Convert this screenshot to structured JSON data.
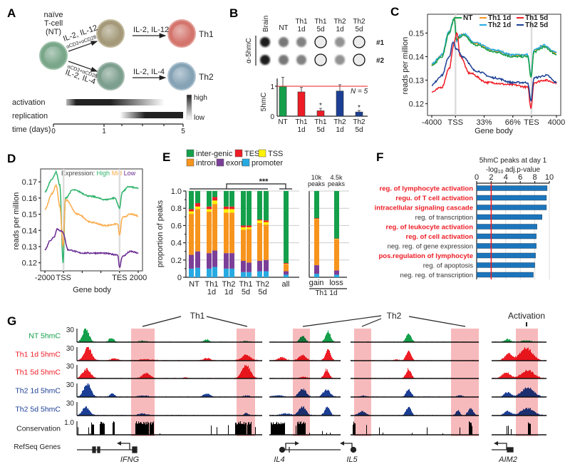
{
  "panels": {
    "a": "A",
    "b": "B",
    "c": "C",
    "d": "D",
    "e": "E",
    "f": "F",
    "g": "G"
  },
  "panel_a": {
    "naive_l1": "naïve",
    "naive_l2": "T-cell",
    "naive_l3": "(NT)",
    "up_cytokines": "IL-2, IL-12",
    "up_stim": "αCD3+αCD28",
    "down_stim": "αCD3+αCD28",
    "down_cytokines": "IL-2, IL-4",
    "th1_cytokines": "IL-2, IL-12",
    "th2_cytokines": "IL-2, IL-4",
    "th1": "Th1",
    "th2": "Th2",
    "activation": "activation",
    "replication": "replication",
    "time_label": "time (days)",
    "time_ticks": [
      "0",
      "1",
      "5"
    ],
    "scale_high": "high",
    "scale_low": "low"
  },
  "panel_b": {
    "antibody": "α-5hmC",
    "columns": [
      {
        "l1": "Brain",
        "l2": "",
        "signal": 1.0
      },
      {
        "l1": "NT",
        "l2": "",
        "signal": 0.55
      },
      {
        "l1": "Th1",
        "l2": "1d",
        "signal": 0.5
      },
      {
        "l1": "Th1",
        "l2": "5d",
        "signal": 0.05
      },
      {
        "l1": "Th2",
        "l2": "1d",
        "signal": 0.42
      },
      {
        "l1": "Th2",
        "l2": "5d",
        "signal": 0.05
      }
    ],
    "replicates": [
      "#1",
      "#2"
    ],
    "n_label": "N = 5",
    "significance": "*"
  },
  "panel_e": {
    "legend": [
      {
        "label": "inter-genic",
        "color": "#14a04b"
      },
      {
        "label": "TES",
        "color": "#ee1c25"
      },
      {
        "label": "TSS",
        "color": "#fff200"
      },
      {
        "label": "intron",
        "color": "#f7941d"
      },
      {
        "label": "exon",
        "color": "#7b3f98"
      },
      {
        "label": "promoter",
        "color": "#27aae1"
      }
    ],
    "significance": "***",
    "gain_peaks_l1": "10k",
    "gain_peaks_l2": "peaks",
    "loss_peaks_l1": "4.5k",
    "loss_peaks_l2": "peaks",
    "gain_loss_group": "Th1 1d"
  },
  "panel_f": {
    "title_l1": "5hmC peaks at day 1",
    "title_l2a": "-log",
    "title_l2sub": "10",
    "title_l2b": " adj.p-value"
  },
  "panel_g": {
    "group_th1": "Th1",
    "group_th2": "Th2",
    "group_activation": "Activation",
    "tracks": [
      {
        "label": "NT 5hmC",
        "scale": "30",
        "color": "#14a04b"
      },
      {
        "label": "Th1 1d 5hmC",
        "scale": "30",
        "color": "#ee1c25"
      },
      {
        "label": "Th1 5d 5hmC",
        "scale": "30",
        "color": "#ee1c25"
      },
      {
        "label": "Th2 1d 5hmC",
        "scale": "30",
        "color": "#1c3f95"
      },
      {
        "label": "Th2 5d 5hmC",
        "scale": "30",
        "color": "#1c3f95"
      },
      {
        "label": "Conservation",
        "scale": "1.0",
        "color": "#000000"
      }
    ],
    "refseq_label": "RefSeq Genes",
    "genes": [
      "IFNG",
      "IL4",
      "IL5",
      "AIM2"
    ]
  },
  "chart_data": [
    {
      "id": "B",
      "type": "bar",
      "title": "",
      "xlabel": "",
      "ylabel": "5hmC",
      "ylim": [
        0,
        1.3
      ],
      "yticks": [
        "0",
        "1"
      ],
      "categories": [
        [
          "NT",
          ""
        ],
        [
          "Th1",
          "1d"
        ],
        [
          "Th1",
          "5d"
        ],
        [
          "Th2",
          "1d"
        ],
        [
          "Th2",
          "5d"
        ]
      ],
      "values": [
        1.0,
        0.81,
        0.18,
        0.84,
        0.14
      ],
      "error_top": [
        1.3,
        0.96,
        0.26,
        1.05,
        0.19
      ],
      "significant": [
        false,
        false,
        true,
        false,
        true
      ],
      "colors": [
        "#14a04b",
        "#ee1c25",
        "#ee1c25",
        "#1c3f95",
        "#1c3f95"
      ],
      "reference_line": 1
    },
    {
      "id": "C",
      "type": "line",
      "xlabel": "Gene body",
      "ylabel": "reads per million",
      "ylim": [
        0.115,
        0.158
      ],
      "yticks": [
        0.12,
        0.13,
        0.14,
        0.15
      ],
      "xticks": [
        {
          "label": "-4000",
          "x": 0
        },
        {
          "label": "TSS",
          "x": 19
        },
        {
          "label": "33%",
          "x": 42
        },
        {
          "label": "66%",
          "x": 65
        },
        {
          "label": "TES",
          "x": 80
        },
        {
          "label": "4000",
          "x": 100
        }
      ],
      "legend": "top",
      "series": [
        {
          "name": "Th1 1d",
          "color": "#f7941d",
          "points": [
            [
              0,
              0.1365
            ],
            [
              8,
              0.1405
            ],
            [
              14,
              0.1505
            ],
            [
              18,
              0.1565
            ],
            [
              20,
              0.1465
            ],
            [
              22,
              0.1485
            ],
            [
              25,
              0.1495
            ],
            [
              35,
              0.1455
            ],
            [
              50,
              0.1425
            ],
            [
              65,
              0.1405
            ],
            [
              77,
              0.1405
            ],
            [
              79.5,
              0.1315
            ],
            [
              82,
              0.1425
            ],
            [
              90,
              0.1445
            ],
            [
              100,
              0.1415
            ]
          ]
        },
        {
          "name": "Th2 1d",
          "color": "#27aae1",
          "points": [
            [
              0,
              0.1368
            ],
            [
              8,
              0.1408
            ],
            [
              14,
              0.1508
            ],
            [
              18,
              0.1562
            ],
            [
              20,
              0.1468
            ],
            [
              22,
              0.1488
            ],
            [
              25,
              0.1498
            ],
            [
              35,
              0.1458
            ],
            [
              50,
              0.1428
            ],
            [
              65,
              0.1408
            ],
            [
              77,
              0.1408
            ],
            [
              79.5,
              0.1318
            ],
            [
              82,
              0.1428
            ],
            [
              90,
              0.1448
            ],
            [
              100,
              0.1418
            ]
          ]
        },
        {
          "name": "NT",
          "color": "#14a04b",
          "points": [
            [
              0,
              0.136
            ],
            [
              8,
              0.14
            ],
            [
              14,
              0.15
            ],
            [
              18,
              0.156
            ],
            [
              20,
              0.147
            ],
            [
              22,
              0.148
            ],
            [
              25,
              0.149
            ],
            [
              35,
              0.145
            ],
            [
              50,
              0.142
            ],
            [
              65,
              0.14
            ],
            [
              77,
              0.14
            ],
            [
              79.5,
              0.131
            ],
            [
              82,
              0.142
            ],
            [
              90,
              0.144
            ],
            [
              100,
              0.141
            ]
          ]
        },
        {
          "name": "Th1 5d",
          "color": "#ee1c25",
          "points": [
            [
              0,
              0.125
            ],
            [
              8,
              0.127
            ],
            [
              14,
              0.135
            ],
            [
              18,
              0.146
            ],
            [
              20,
              0.15
            ],
            [
              23,
              0.14
            ],
            [
              30,
              0.133
            ],
            [
              45,
              0.129
            ],
            [
              65,
              0.128
            ],
            [
              77,
              0.127
            ],
            [
              79.5,
              0.118
            ],
            [
              82,
              0.129
            ],
            [
              90,
              0.13
            ],
            [
              100,
              0.129
            ]
          ]
        },
        {
          "name": "Th2 5d",
          "color": "#1c3f95",
          "points": [
            [
              0,
              0.128
            ],
            [
              8,
              0.132
            ],
            [
              14,
              0.14
            ],
            [
              17,
              0.146
            ],
            [
              20,
              0.143
            ],
            [
              25,
              0.14
            ],
            [
              35,
              0.134
            ],
            [
              50,
              0.131
            ],
            [
              65,
              0.129
            ],
            [
              77,
              0.129
            ],
            [
              79.5,
              0.121
            ],
            [
              82,
              0.131
            ],
            [
              92,
              0.132
            ],
            [
              100,
              0.129
            ]
          ]
        }
      ]
    },
    {
      "id": "D",
      "type": "line",
      "xlabel": "Gene body",
      "ylabel": "reads per million",
      "ylim": [
        0.115,
        0.178
      ],
      "yticks": [
        0.12,
        0.13,
        0.14,
        0.15,
        0.16,
        0.17
      ],
      "xticks": [
        {
          "label": "-2000",
          "x": 0
        },
        {
          "label": "TSS",
          "x": 20
        },
        {
          "label": "",
          "x": 40
        },
        {
          "label": "",
          "x": 60
        },
        {
          "label": "TES",
          "x": 80
        },
        {
          "label": "2000",
          "x": 100
        }
      ],
      "legend_title": "Expression:",
      "series": [
        {
          "name": "High",
          "color": "#2db36a",
          "points": [
            [
              0,
              0.164
            ],
            [
              8,
              0.172
            ],
            [
              12,
              0.176
            ],
            [
              16,
              0.168
            ],
            [
              19.5,
              0.12
            ],
            [
              22,
              0.16
            ],
            [
              30,
              0.165
            ],
            [
              50,
              0.161
            ],
            [
              65,
              0.159
            ],
            [
              75,
              0.16
            ],
            [
              80,
              0.154
            ],
            [
              83,
              0.164
            ],
            [
              90,
              0.167
            ],
            [
              100,
              0.166
            ]
          ]
        },
        {
          "name": "Mid",
          "color": "#fbab4a",
          "points": [
            [
              0,
              0.153
            ],
            [
              8,
              0.163
            ],
            [
              12,
              0.168
            ],
            [
              16,
              0.155
            ],
            [
              19.5,
              0.13
            ],
            [
              22,
              0.159
            ],
            [
              35,
              0.15
            ],
            [
              50,
              0.145
            ],
            [
              65,
              0.143
            ],
            [
              78,
              0.144
            ],
            [
              80,
              0.137
            ],
            [
              83,
              0.148
            ],
            [
              92,
              0.15
            ],
            [
              100,
              0.149
            ]
          ]
        },
        {
          "name": "Low",
          "color": "#6a2a93",
          "points": [
            [
              0,
              0.128
            ],
            [
              6,
              0.134
            ],
            [
              10,
              0.136
            ],
            [
              13,
              0.141
            ],
            [
              16,
              0.14
            ],
            [
              19,
              0.139
            ],
            [
              25,
              0.128
            ],
            [
              40,
              0.126
            ],
            [
              60,
              0.126
            ],
            [
              78,
              0.125
            ],
            [
              80,
              0.117
            ],
            [
              83,
              0.124
            ],
            [
              92,
              0.127
            ],
            [
              100,
              0.126
            ]
          ]
        }
      ]
    },
    {
      "id": "E",
      "type": "bar",
      "stacked": true,
      "ylabel": "proportion of peaks",
      "ylim": [
        0,
        1
      ],
      "yticks": [
        "0",
        "0.2",
        "0.4",
        "0.6",
        "0.8",
        "1.0"
      ],
      "stack_order": [
        "promoter",
        "exon",
        "intron",
        "TSS",
        "TES",
        "inter-genic"
      ],
      "groups": [
        {
          "l1": "NT",
          "l2": "",
          "bars": [
            [
              0.1,
              0.16,
              0.475,
              0.03,
              0.025,
              0.21
            ],
            [
              0.11,
              0.19,
              0.49,
              0.03,
              0.04,
              0.14
            ]
          ]
        },
        {
          "l1": "Th1",
          "l2": "1d",
          "bars": [
            [
              0.1,
              0.18,
              0.48,
              0.03,
              0.03,
              0.18
            ],
            [
              0.12,
              0.19,
              0.54,
              0.04,
              0.04,
              0.07
            ]
          ]
        },
        {
          "l1": "Th2",
          "l2": "1d",
          "bars": [
            [
              0.1,
              0.18,
              0.47,
              0.04,
              0.03,
              0.18
            ],
            [
              0.1,
              0.18,
              0.47,
              0.04,
              0.03,
              0.18
            ]
          ]
        },
        {
          "l1": "Th1",
          "l2": "5d",
          "bars": [
            [
              0.06,
              0.13,
              0.36,
              0.03,
              0.02,
              0.4
            ],
            [
              0.06,
              0.11,
              0.39,
              0.02,
              0.02,
              0.4
            ]
          ]
        },
        {
          "l1": "Th2",
          "l2": "5d",
          "bars": [
            [
              0.07,
              0.12,
              0.44,
              0.03,
              0.01,
              0.33
            ],
            [
              0.07,
              0.13,
              0.41,
              0.03,
              0.02,
              0.34
            ]
          ]
        },
        {
          "l1": "all",
          "l2": "",
          "bars": [
            [
              0.03,
              0.04,
              0.08,
              0.005,
              0.01,
              0.835
            ]
          ]
        }
      ],
      "gain_loss": [
        {
          "label": "gain",
          "bars": [
            [
              0.04,
              0.1,
              0.53,
              0.005,
              0.01,
              0.315
            ]
          ]
        },
        {
          "label": "loss",
          "bars": [
            [
              0.03,
              0.05,
              0.36,
              0.005,
              0.005,
              0.55
            ]
          ]
        }
      ]
    },
    {
      "id": "F",
      "type": "bar",
      "orientation": "horizontal",
      "xlim": [
        0,
        10
      ],
      "xticks": [
        "0",
        "2",
        "4",
        "6",
        "8",
        "10"
      ],
      "threshold": 2,
      "categories": [
        {
          "label": "reg. of lymphocyte activation",
          "highlight": true
        },
        {
          "label": "regu. of T cell activation",
          "highlight": true
        },
        {
          "label": "intracellular signaling cascade",
          "highlight": true
        },
        {
          "label": "reg. of transcription",
          "highlight": false
        },
        {
          "label": "reg. of leukocyte activation",
          "highlight": true
        },
        {
          "label": "reg. of cell activation",
          "highlight": true
        },
        {
          "label": "neg. reg. of gene expression",
          "highlight": false
        },
        {
          "label": "pos.regulation of lymphocyte",
          "highlight": true
        },
        {
          "label": "reg. of apoptosis",
          "highlight": false
        },
        {
          "label": "neg. reg. of transcription",
          "highlight": false
        }
      ],
      "values": [
        9.7,
        9.6,
        9.6,
        9.0,
        8.3,
        8.2,
        8.2,
        8.1,
        8.0,
        7.8
      ],
      "bar_color": "#1b75bc"
    }
  ]
}
